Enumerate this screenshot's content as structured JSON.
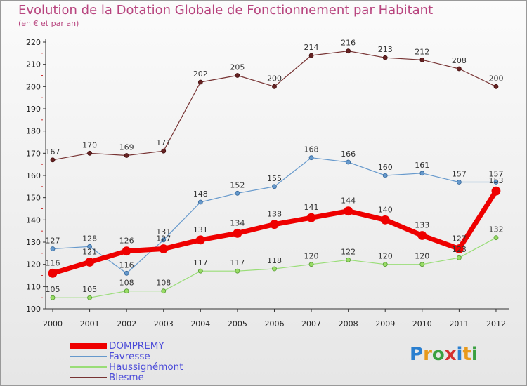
{
  "chart_data": {
    "type": "line",
    "title": "Evolution de la Dotation Globale de Fonctionnement par Habitant",
    "subtitle": "(en € et par an)",
    "x": [
      "2000",
      "2001",
      "2002",
      "2003",
      "2004",
      "2005",
      "2006",
      "2007",
      "2008",
      "2009",
      "2010",
      "2011",
      "2012"
    ],
    "ylim": [
      100,
      220
    ],
    "yticks": [
      100,
      110,
      120,
      130,
      140,
      150,
      160,
      170,
      180,
      190,
      200,
      210,
      220
    ],
    "series": [
      {
        "name": "DOMPREMY",
        "color": "#ee0000",
        "values": [
          116,
          121,
          126,
          127,
          131,
          134,
          138,
          141,
          144,
          140,
          133,
          127,
          153
        ]
      },
      {
        "name": "Favresse",
        "color": "#6699cc",
        "values": [
          127,
          128,
          116,
          131,
          148,
          152,
          155,
          168,
          166,
          160,
          161,
          157,
          157
        ]
      },
      {
        "name": "Haussignémont",
        "color": "#99dd77",
        "values": [
          105,
          105,
          108,
          108,
          117,
          117,
          118,
          120,
          122,
          120,
          120,
          123,
          132
        ]
      },
      {
        "name": "Blesme",
        "color": "#773333",
        "values": [
          167,
          170,
          169,
          171,
          202,
          205,
          200,
          214,
          216,
          213,
          212,
          208,
          200
        ]
      }
    ]
  },
  "logo": {
    "text": "Proxiti",
    "letters": [
      "P",
      "r",
      "o",
      "x",
      "i",
      "t",
      "i"
    ],
    "colors": [
      "#2a7fd0",
      "#e89a1c",
      "#3aa040",
      "#d4302f",
      "#2a7fd0",
      "#e89a1c",
      "#3aa040"
    ]
  }
}
